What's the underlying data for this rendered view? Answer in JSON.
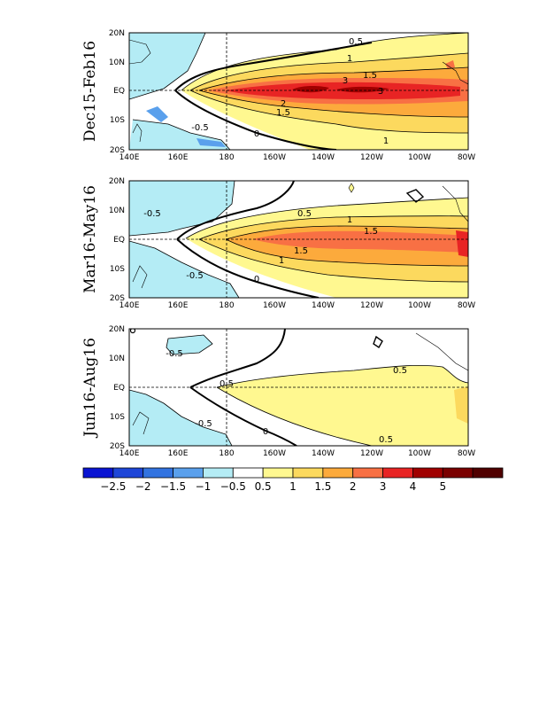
{
  "chart_data": {
    "type": "heatmap",
    "quantity": "sea surface temperature anomaly",
    "x_ticks": [
      "140E",
      "160E",
      "180",
      "160W",
      "140W",
      "120W",
      "100W",
      "80W"
    ],
    "y_ticks": [
      "20S",
      "10S",
      "EQ",
      "10N",
      "20N"
    ],
    "xlim_lon_east": [
      140,
      280
    ],
    "ylim_lat": [
      -20,
      20
    ],
    "colorbar": {
      "labels": [
        "-2.5",
        "-2",
        "-1.5",
        "-1",
        "-0.5",
        "0.5",
        "1",
        "1.5",
        "2",
        "3",
        "4",
        "5"
      ],
      "colors": [
        "#0a14d2",
        "#1e46d8",
        "#3273e0",
        "#5aa0ec",
        "#b4ecf5",
        "#ffffff",
        "#fff890",
        "#fcd95e",
        "#fcaa3c",
        "#f87044",
        "#e82424",
        "#a00000",
        "#7a0000",
        "#500000"
      ]
    },
    "panels": [
      {
        "title": "Dec15-Feb16",
        "max_anomaly": 3,
        "contour_labels": [
          "0.5",
          "1",
          "1.5",
          "2",
          "3",
          "3",
          "1.5",
          "-0.5",
          "0",
          "1"
        ]
      },
      {
        "title": "Mar16-May16",
        "max_anomaly": 2,
        "contour_labels": [
          "-0.5",
          "0.5",
          "1",
          "1.5",
          "1.5",
          "1",
          "-0.5",
          "0"
        ]
      },
      {
        "title": "Jun16-Aug16",
        "max_anomaly": 1,
        "contour_labels": [
          "-0.5",
          "0.5",
          "0.5",
          "-0.5",
          "0",
          "0.5"
        ]
      }
    ]
  }
}
